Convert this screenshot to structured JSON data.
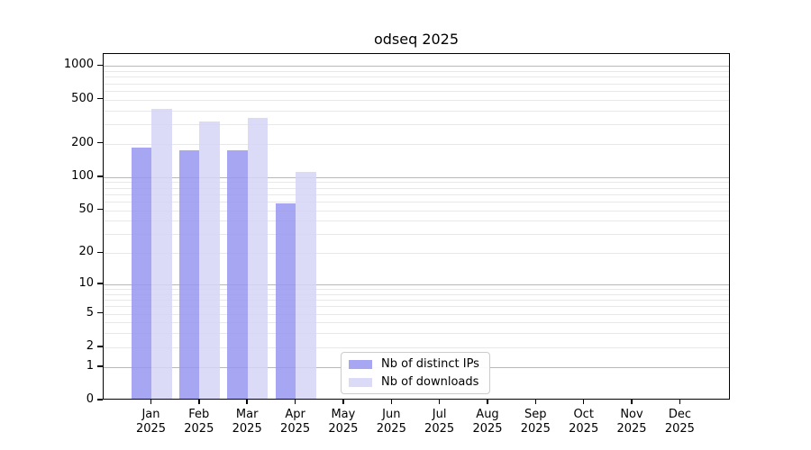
{
  "title": "odseq 2025",
  "y_axis": {
    "tick_labels": [
      "0",
      "1",
      "2",
      "5",
      "10",
      "20",
      "50",
      "100",
      "200",
      "500",
      "1000"
    ]
  },
  "x_axis": {
    "months": [
      {
        "month": "Jan",
        "year": "2025"
      },
      {
        "month": "Feb",
        "year": "2025"
      },
      {
        "month": "Mar",
        "year": "2025"
      },
      {
        "month": "Apr",
        "year": "2025"
      },
      {
        "month": "May",
        "year": "2025"
      },
      {
        "month": "Jun",
        "year": "2025"
      },
      {
        "month": "Jul",
        "year": "2025"
      },
      {
        "month": "Aug",
        "year": "2025"
      },
      {
        "month": "Sep",
        "year": "2025"
      },
      {
        "month": "Oct",
        "year": "2025"
      },
      {
        "month": "Nov",
        "year": "2025"
      },
      {
        "month": "Dec",
        "year": "2025"
      }
    ]
  },
  "legend": {
    "items": [
      {
        "label": "Nb of distinct IPs",
        "color": "rgba(150,150,240,0.85)",
        "solid_hex": "#a5a5f2"
      },
      {
        "label": "Nb of downloads",
        "color": "rgba(213,213,247,0.85)",
        "solid_hex": "#dbdbf8"
      }
    ]
  },
  "chart_data": {
    "type": "bar",
    "title": "odseq 2025",
    "categories": [
      "Jan 2025",
      "Feb 2025",
      "Mar 2025",
      "Apr 2025",
      "May 2025",
      "Jun 2025",
      "Jul 2025",
      "Aug 2025",
      "Sep 2025",
      "Oct 2025",
      "Nov 2025",
      "Dec 2025"
    ],
    "series": [
      {
        "name": "Nb of distinct IPs",
        "color": "#a5a5f2",
        "values": [
          177,
          168,
          168,
          56,
          null,
          null,
          null,
          null,
          null,
          null,
          null,
          null
        ]
      },
      {
        "name": "Nb of downloads",
        "color": "#dbdbf8",
        "values": [
          398,
          306,
          330,
          107,
          null,
          null,
          null,
          null,
          null,
          null,
          null,
          null
        ]
      }
    ],
    "y_ticks": [
      0,
      1,
      2,
      5,
      10,
      20,
      50,
      100,
      200,
      500,
      1000
    ],
    "y_scale": "log10(value+1)",
    "ylim": [
      0,
      1280
    ],
    "xlabel": "",
    "ylabel": "",
    "grid": true,
    "legend_position": "inside-bottom-center"
  }
}
